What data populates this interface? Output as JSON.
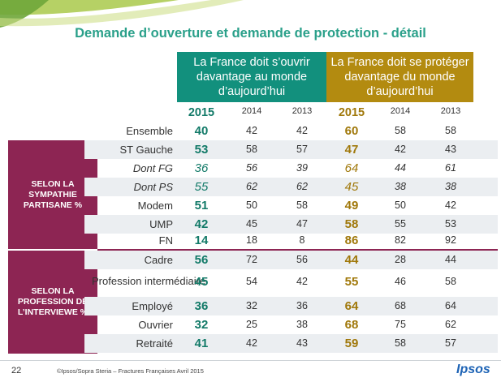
{
  "title": "Demande d’ouverture et demande de protection - détail",
  "headers": {
    "open": "La France doit s’ouvrir davantage au monde d’aujourd’hui",
    "protect": "La France doit se protéger davantage du monde d’aujourd’hui"
  },
  "years": [
    "2015",
    "2014",
    "2013",
    "2015",
    "2014",
    "2013"
  ],
  "groups": {
    "party": "SELON LA SYMPATHIE PARTISANE %",
    "profession": "SELON LA PROFESSION DE L’INTERVIEWE %"
  },
  "rows": [
    {
      "label": "Ensemble",
      "values": [
        "40",
        "42",
        "42",
        "60",
        "58",
        "58"
      ]
    },
    {
      "label": "ST Gauche",
      "values": [
        "53",
        "58",
        "57",
        "47",
        "42",
        "43"
      ]
    },
    {
      "label": "Dont FG",
      "values": [
        "36",
        "56",
        "39",
        "64",
        "44",
        "61"
      ]
    },
    {
      "label": "Dont PS",
      "values": [
        "55",
        "62",
        "62",
        "45",
        "38",
        "38"
      ]
    },
    {
      "label": "Modem",
      "values": [
        "51",
        "50",
        "58",
        "49",
        "50",
        "42"
      ]
    },
    {
      "label": "UMP",
      "values": [
        "42",
        "45",
        "47",
        "58",
        "55",
        "53"
      ]
    },
    {
      "label": "FN",
      "values": [
        "14",
        "18",
        "8",
        "86",
        "82",
        "92"
      ]
    },
    {
      "label": "Cadre",
      "values": [
        "56",
        "72",
        "56",
        "44",
        "28",
        "44"
      ]
    },
    {
      "label": "Profession intermédiaire",
      "values": [
        "45",
        "54",
        "42",
        "55",
        "46",
        "58"
      ]
    },
    {
      "label": "Employé",
      "values": [
        "36",
        "32",
        "36",
        "64",
        "68",
        "64"
      ]
    },
    {
      "label": "Ouvrier",
      "values": [
        "32",
        "25",
        "38",
        "68",
        "75",
        "62"
      ]
    },
    {
      "label": "Retraité",
      "values": [
        "41",
        "42",
        "43",
        "59",
        "58",
        "57"
      ]
    }
  ],
  "footer": {
    "page": "22",
    "copyright": "©Ipsos/Sopra Steria – Fractures Françaises Avril 2015",
    "logo": "Ipsos"
  },
  "colors": {
    "teal": "#12907d",
    "gold": "#b38b10",
    "plum": "#8d2553"
  }
}
